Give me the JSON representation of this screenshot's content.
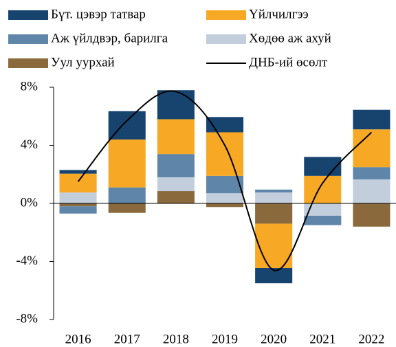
{
  "chart_data": {
    "type": "bar",
    "categories": [
      "2016",
      "2017",
      "2018",
      "2019",
      "2020",
      "2021",
      "2022"
    ],
    "series": [
      {
        "name": "Бүт. цэвэр татвар",
        "color": "#17436f",
        "values": [
          0.25,
          1.95,
          2.0,
          1.05,
          -1.05,
          1.3,
          1.35
        ]
      },
      {
        "name": "Үйлчилгээ",
        "color": "#f7a824",
        "values": [
          1.3,
          3.3,
          2.4,
          3.0,
          -3.05,
          1.9,
          2.6
        ]
      },
      {
        "name": "Аж үйлдвэр, барилга",
        "color": "#5f86a8",
        "values": [
          -0.5,
          1.1,
          1.6,
          1.2,
          0.2,
          -0.65,
          0.85
        ]
      },
      {
        "name": "Хөдөө аж ахуй",
        "color": "#c3cedd",
        "values": [
          0.75,
          0,
          0.95,
          0.7,
          0.75,
          -0.85,
          1.65
        ]
      },
      {
        "name": "Уул уурхай",
        "color": "#8a693d",
        "values": [
          -0.2,
          -0.65,
          0.85,
          -0.25,
          -1.4,
          0,
          -1.6
        ]
      },
      {
        "name": "ДНБ-ий өсөлт",
        "type": "line",
        "color": "#000000",
        "values": [
          1.5,
          5.7,
          7.7,
          4.0,
          -4.6,
          1.4,
          4.9
        ]
      }
    ],
    "ylim": [
      -8,
      8
    ],
    "yticks": [
      {
        "value": -8,
        "label": "-8%"
      },
      {
        "value": -4,
        "label": "-4%"
      },
      {
        "value": 0,
        "label": "0%"
      },
      {
        "value": 4,
        "label": "4%"
      },
      {
        "value": 8,
        "label": "8%"
      }
    ]
  }
}
